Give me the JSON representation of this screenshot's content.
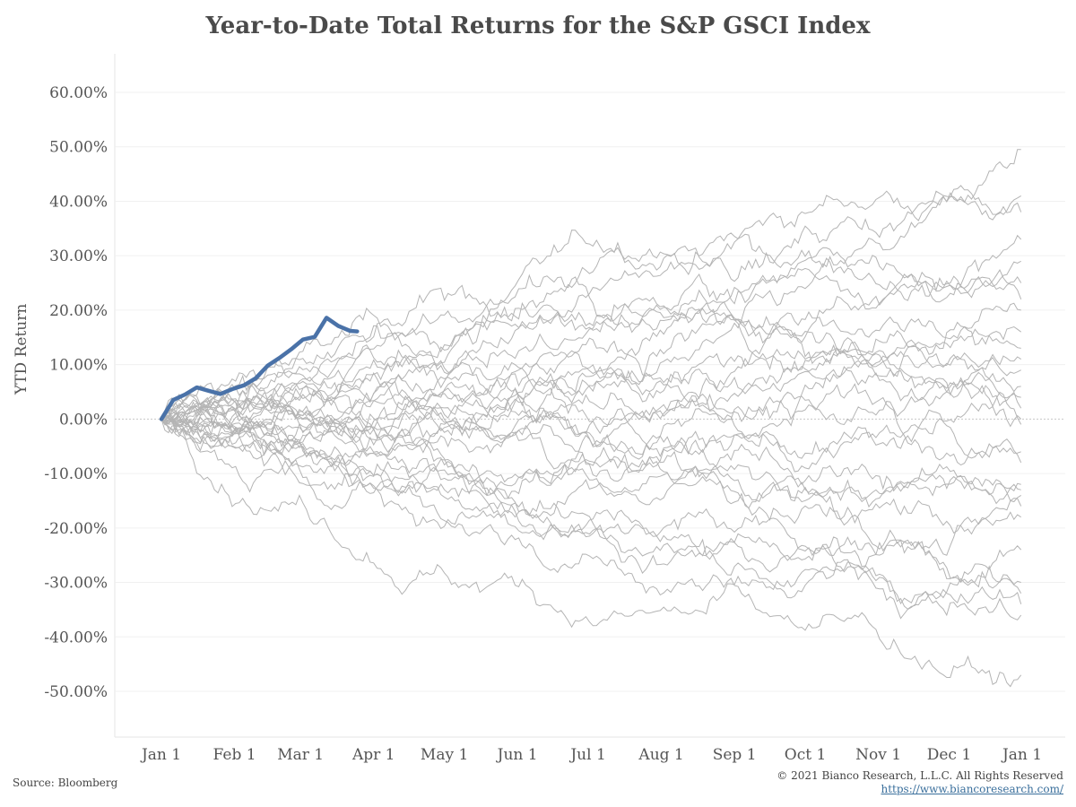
{
  "chart_data": {
    "type": "line",
    "title": "Year-to-Date Total Returns for the S&P GSCI Index",
    "ylabel": "YTD Return",
    "xlabel": "",
    "x_ticks": [
      "Jan 1",
      "Feb 1",
      "Mar 1",
      "Apr 1",
      "May 1",
      "Jun 1",
      "Jul 1",
      "Aug 1",
      "Sep 1",
      "Oct 1",
      "Nov 1",
      "Dec 1",
      "Jan 1"
    ],
    "y_ticks": [
      "60.00%",
      "50.00%",
      "40.00%",
      "30.00%",
      "20.00%",
      "10.00%",
      "0.00%",
      "-10.00%",
      "-20.00%",
      "-30.00%",
      "-40.00%",
      "-50.00%"
    ],
    "ylim": [
      -58,
      66
    ],
    "x_unit": "day of year",
    "grid": true,
    "historical_color": "#b4b4b4",
    "current_color": "#4a72a8",
    "historical_endpoints": [
      49.5,
      41,
      38,
      33,
      29,
      25,
      22,
      20,
      16,
      13,
      11,
      9,
      6,
      4,
      2,
      0,
      -1,
      -6,
      -8,
      -12,
      -13,
      -14,
      -16,
      -18,
      -24,
      -30,
      -32,
      -34,
      -36,
      -47
    ],
    "current_series": {
      "x": [
        0,
        5,
        10,
        15,
        20,
        25,
        30,
        35,
        40,
        45,
        50,
        55,
        60,
        65,
        70,
        75,
        80,
        83
      ],
      "y": [
        0,
        3.5,
        4.5,
        5.8,
        5.2,
        4.6,
        5.5,
        6.2,
        7.5,
        9.8,
        11.2,
        12.8,
        14.6,
        15.1,
        18.6,
        17.1,
        16.2,
        16.1
      ]
    }
  },
  "footer": {
    "source": "Source: Bloomberg",
    "copyright": "© 2021 Bianco Research, L.L.C. All Rights Reserved",
    "url": "https://www.biancoresearch.com/"
  }
}
